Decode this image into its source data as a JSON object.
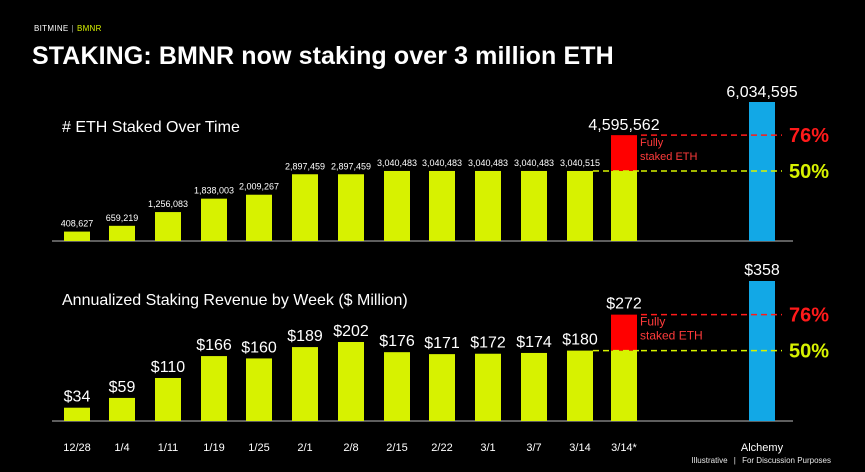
{
  "header": {
    "brand": "BITMINE",
    "brand_separator": "|",
    "brand_ticker": "BMNR",
    "title": "STAKING: BMNR now staking over 3 million ETH"
  },
  "footer": {
    "left": "Illustrative",
    "separator": "|",
    "right": "For Discussion Purposes"
  },
  "colors": {
    "background": "#000000",
    "bar": "#d7f200",
    "fully_staked": "#ff0000",
    "alchemy": "#12a8e6",
    "pct_76": "#ff1a1a",
    "pct_50": "#d7f200"
  },
  "chart_data": [
    {
      "type": "bar",
      "title": "# ETH Staked Over Time",
      "categories": [
        "12/28",
        "1/4",
        "1/11",
        "1/19",
        "1/25",
        "2/1",
        "2/8",
        "2/15",
        "2/22",
        "3/1",
        "3/7",
        "3/14",
        "3/14*",
        "Alchemy"
      ],
      "value_labels": [
        "408,627",
        "659,219",
        "1,256,083",
        "1,838,003",
        "2,009,267",
        "2,897,459",
        "2,897,459",
        "3,040,483",
        "3,040,483",
        "3,040,483",
        "3,040,483",
        "3,040,515",
        "4,595,562",
        "6,034,595"
      ],
      "values": [
        408627,
        659219,
        1256083,
        1838003,
        2009267,
        2897459,
        2897459,
        3040483,
        3040483,
        3040483,
        3040483,
        3040515,
        4595562,
        6034595
      ],
      "stacked_index": 12,
      "stacked_base": 3040515,
      "stack_label": "Fully\nstaked ETH",
      "alchemy_index": 13,
      "reference_lines": [
        {
          "label": "76%",
          "value": 4595562,
          "color": "#ff1a1a"
        },
        {
          "label": "50%",
          "value": 3040515,
          "color": "#d7f200"
        }
      ],
      "ylim": [
        0,
        6034595
      ]
    },
    {
      "type": "bar",
      "title": "Annualized Staking Revenue by Week ($ Million)",
      "categories": [
        "12/28",
        "1/4",
        "1/11",
        "1/19",
        "1/25",
        "2/1",
        "2/8",
        "2/15",
        "2/22",
        "3/1",
        "3/7",
        "3/14",
        "3/14*",
        "Alchemy"
      ],
      "value_labels": [
        "$34",
        "$59",
        "$110",
        "$166",
        "$160",
        "$189",
        "$202",
        "$176",
        "$171",
        "$172",
        "$174",
        "$180",
        "$272",
        "$358"
      ],
      "values": [
        34,
        59,
        110,
        166,
        160,
        189,
        202,
        176,
        171,
        172,
        174,
        180,
        272,
        358
      ],
      "stacked_index": 12,
      "stacked_base": 180,
      "stack_label": "Fully\nstaked ETH",
      "alchemy_index": 13,
      "reference_lines": [
        {
          "label": "76%",
          "value": 272,
          "color": "#ff1a1a"
        },
        {
          "label": "50%",
          "value": 180,
          "color": "#d7f200"
        }
      ],
      "ylim": [
        0,
        358
      ]
    }
  ]
}
